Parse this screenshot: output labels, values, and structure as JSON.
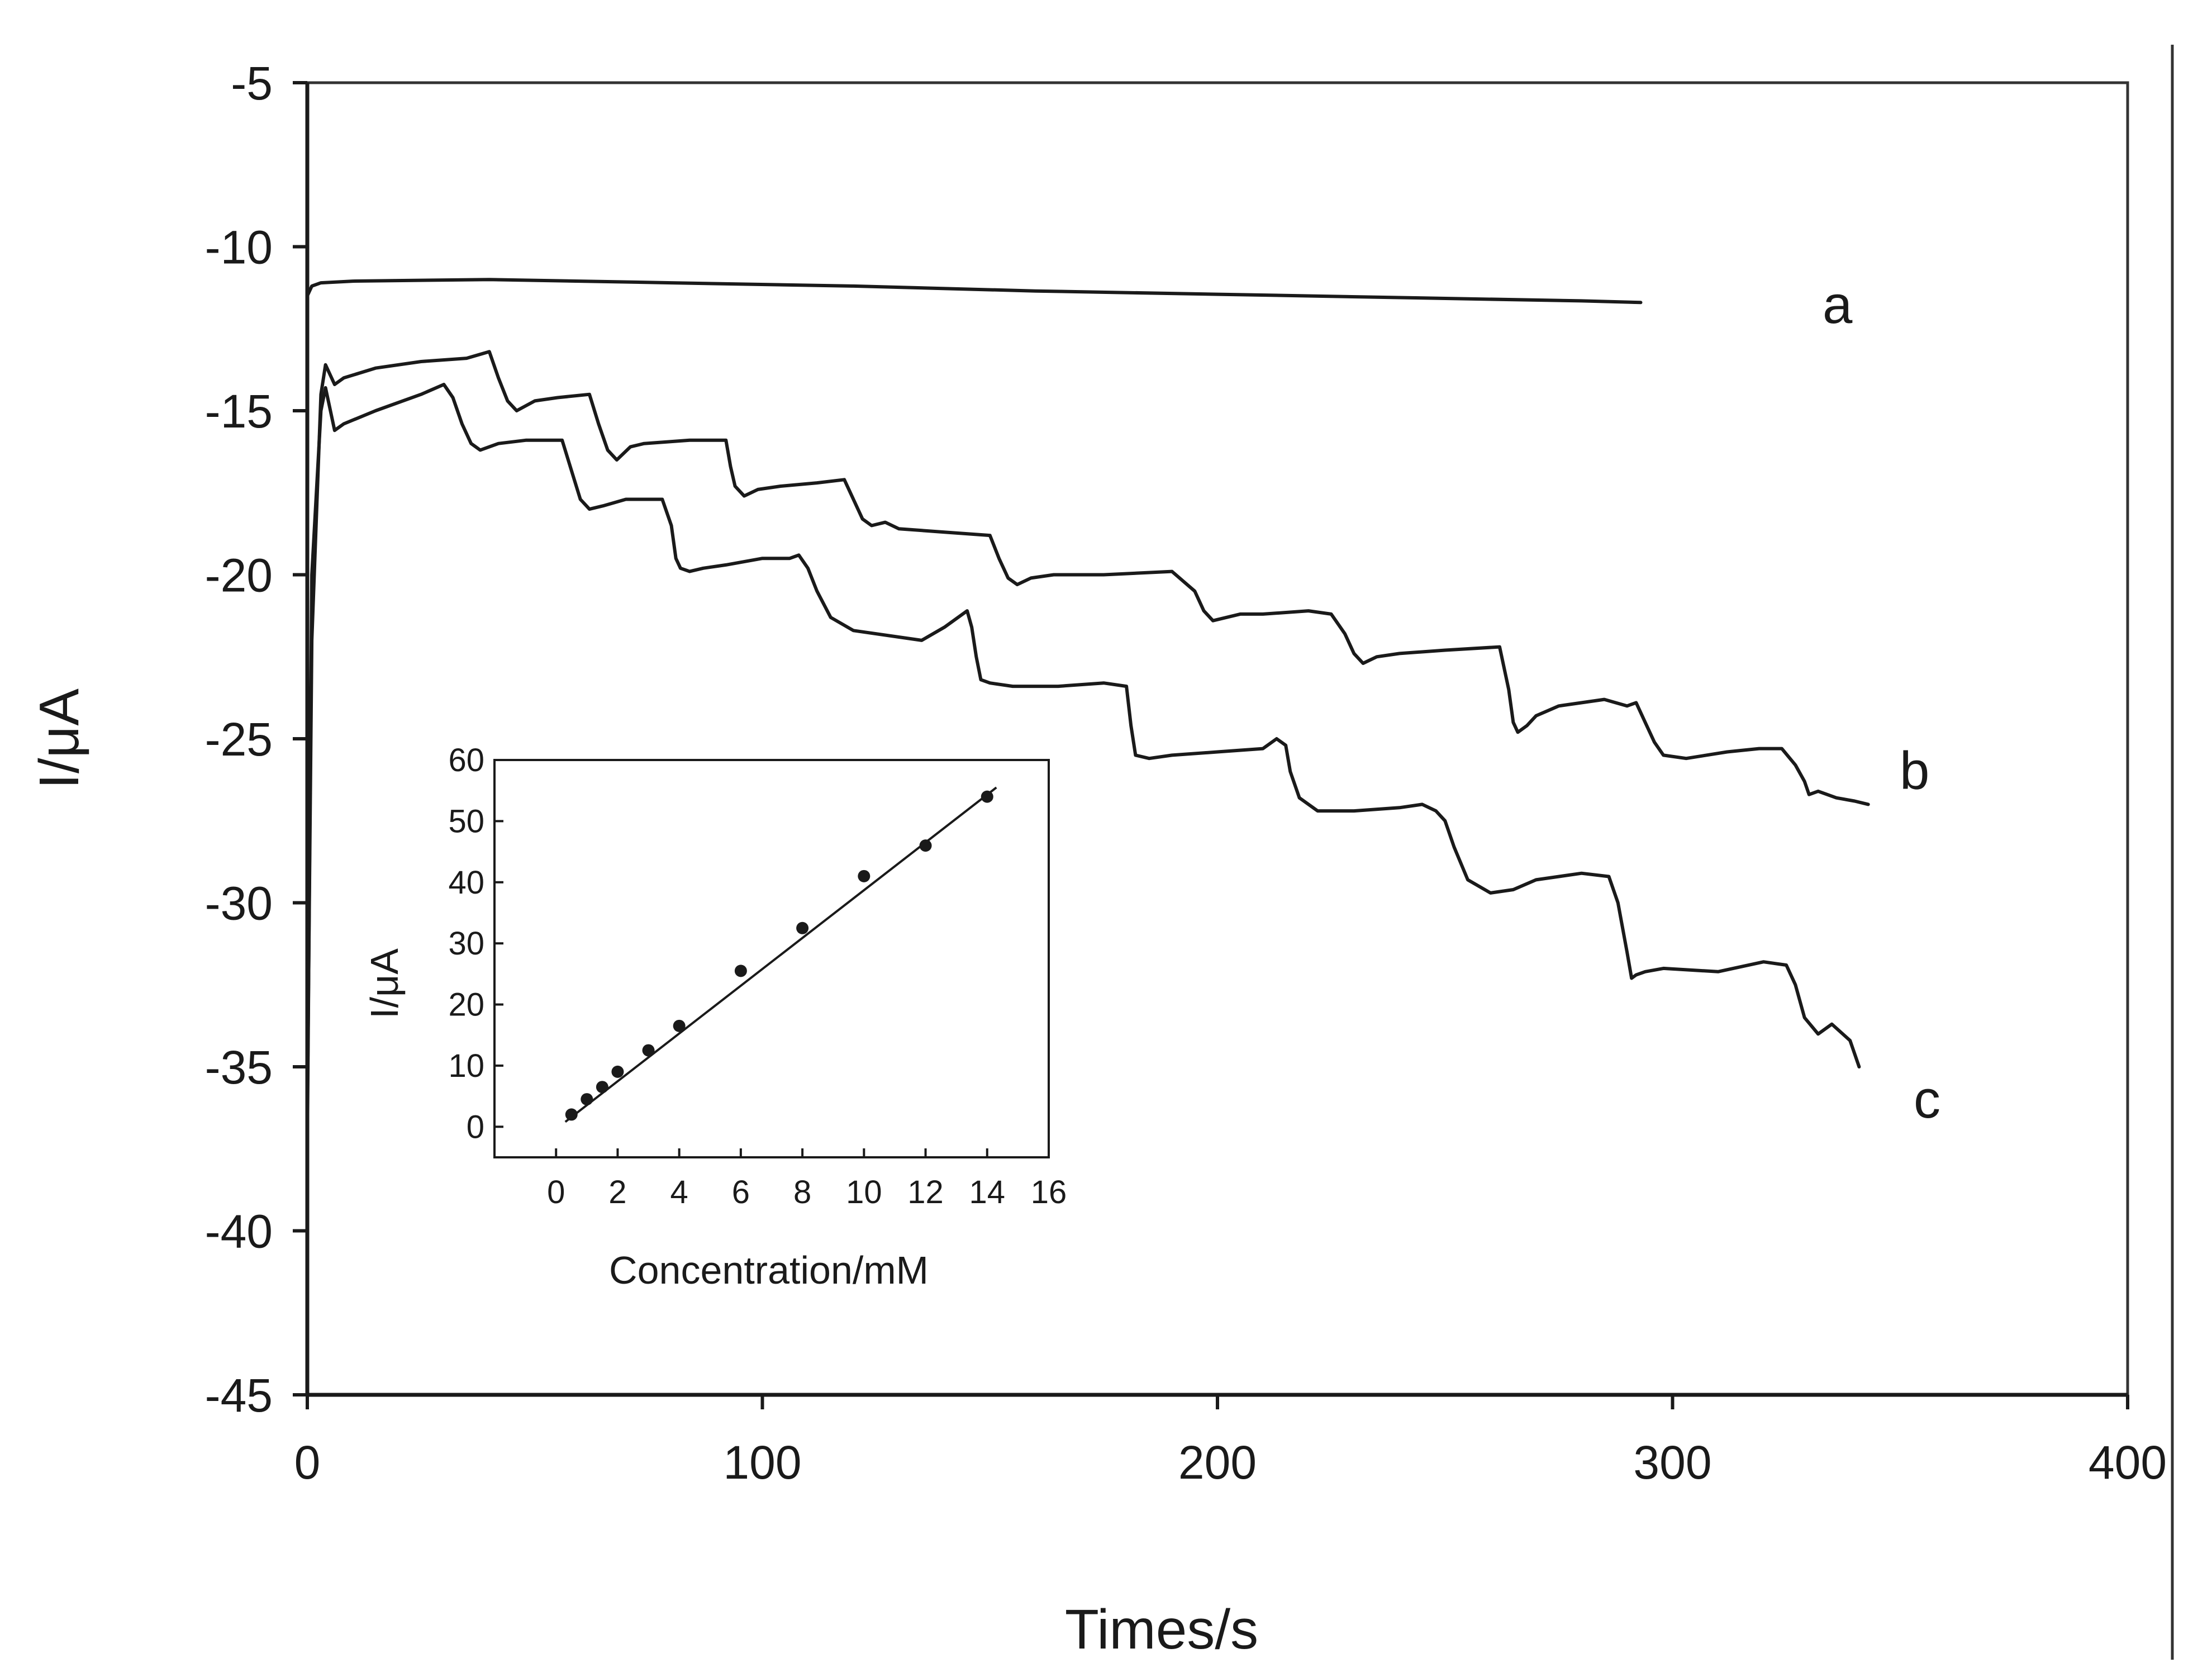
{
  "chart_data": [
    {
      "type": "line",
      "xlabel": "Times/s",
      "ylabel": "I/μA",
      "xlim": [
        0,
        400
      ],
      "ylim": [
        -45,
        -5
      ],
      "xticks": [
        "0",
        "100",
        "200",
        "300",
        "400"
      ],
      "yticks": [
        "-5",
        "-10",
        "-15",
        "-20",
        "-25",
        "-30",
        "-35",
        "-40",
        "-45"
      ],
      "series": [
        {
          "name": "a",
          "x": [
            0,
            1,
            3,
            10,
            40,
            80,
            120,
            160,
            200,
            240,
            280,
            293
          ],
          "y": [
            -11.5,
            -11.2,
            -11.1,
            -11.05,
            -11.0,
            -11.1,
            -11.2,
            -11.35,
            -11.45,
            -11.55,
            -11.65,
            -11.7
          ]
        },
        {
          "name": "b",
          "x": [
            0,
            1,
            3,
            4,
            6,
            8,
            15,
            25,
            35,
            40,
            42,
            44,
            46,
            50,
            55,
            62,
            64,
            66,
            68,
            71,
            74,
            84,
            92,
            93,
            94,
            96,
            99,
            104,
            112,
            118,
            120,
            122,
            124,
            127,
            130,
            140,
            150,
            152,
            154,
            156,
            159,
            164,
            175,
            190,
            195,
            197,
            199,
            202,
            205,
            210,
            220,
            225,
            228,
            230,
            232,
            235,
            240,
            250,
            262,
            264,
            265,
            266,
            268,
            270,
            275,
            285,
            290,
            292,
            294,
            296,
            298,
            303,
            312,
            319,
            324,
            327,
            329,
            330,
            332,
            336,
            340,
            343
          ],
          "y": [
            -36.5,
            -22,
            -14.5,
            -13.6,
            -14.2,
            -14.0,
            -13.7,
            -13.5,
            -13.4,
            -13.2,
            -14.0,
            -14.7,
            -15.0,
            -14.7,
            -14.6,
            -14.5,
            -15.4,
            -16.2,
            -16.5,
            -16.1,
            -16.0,
            -15.9,
            -15.9,
            -16.7,
            -17.3,
            -17.6,
            -17.4,
            -17.3,
            -17.2,
            -17.1,
            -17.7,
            -18.3,
            -18.5,
            -18.4,
            -18.6,
            -18.7,
            -18.8,
            -19.5,
            -20.1,
            -20.3,
            -20.1,
            -20.0,
            -20.0,
            -19.9,
            -20.5,
            -21.1,
            -21.4,
            -21.3,
            -21.2,
            -21.2,
            -21.1,
            -21.2,
            -21.8,
            -22.4,
            -22.7,
            -22.5,
            -22.4,
            -22.3,
            -22.2,
            -23.5,
            -24.5,
            -24.8,
            -24.6,
            -24.3,
            -24.0,
            -23.8,
            -24.0,
            -23.9,
            -24.5,
            -25.1,
            -25.5,
            -25.6,
            -25.4,
            -25.3,
            -25.3,
            -25.8,
            -26.3,
            -26.7,
            -26.6,
            -26.8,
            -26.9,
            -27.0
          ]
        },
        {
          "name": "c",
          "x": [
            0,
            1,
            3,
            4,
            6,
            8,
            15,
            25,
            30,
            32,
            34,
            36,
            38,
            42,
            48,
            56,
            58,
            60,
            62,
            65,
            70,
            78,
            80,
            81,
            82,
            84,
            87,
            92,
            100,
            106,
            108,
            110,
            112,
            115,
            120,
            135,
            140,
            145,
            146,
            147,
            148,
            150,
            155,
            165,
            175,
            180,
            181,
            182,
            185,
            190,
            200,
            210,
            213,
            215,
            216,
            218,
            222,
            230,
            240,
            245,
            248,
            250,
            252,
            255,
            260,
            265,
            270,
            280,
            286,
            288,
            290,
            291,
            292,
            294,
            298,
            310,
            320,
            325,
            327,
            329,
            332,
            335,
            339,
            341
          ],
          "y": [
            -37.5,
            -20,
            -15.0,
            -14.3,
            -15.6,
            -15.4,
            -15.0,
            -14.5,
            -14.2,
            -14.6,
            -15.4,
            -16.0,
            -16.2,
            -16.0,
            -15.9,
            -15.9,
            -16.8,
            -17.7,
            -18.0,
            -17.9,
            -17.7,
            -17.7,
            -18.5,
            -19.5,
            -19.8,
            -19.9,
            -19.8,
            -19.7,
            -19.5,
            -19.5,
            -19.4,
            -19.8,
            -20.5,
            -21.3,
            -21.7,
            -22.0,
            -21.6,
            -21.1,
            -21.6,
            -22.5,
            -23.2,
            -23.3,
            -23.4,
            -23.4,
            -23.3,
            -23.4,
            -24.6,
            -25.5,
            -25.6,
            -25.5,
            -25.4,
            -25.3,
            -25.0,
            -25.2,
            -26.0,
            -26.8,
            -27.2,
            -27.2,
            -27.1,
            -27.0,
            -27.2,
            -27.5,
            -28.3,
            -29.3,
            -29.7,
            -29.6,
            -29.3,
            -29.1,
            -29.2,
            -30.0,
            -31.5,
            -32.3,
            -32.2,
            -32.1,
            -32.0,
            -32.1,
            -31.8,
            -31.9,
            -32.5,
            -33.5,
            -34.0,
            -33.7,
            -34.2,
            -35.0
          ]
        }
      ]
    },
    {
      "type": "scatter",
      "xlabel": "Concentration/mM",
      "ylabel": "I/μA",
      "xlim": [
        -2,
        16
      ],
      "ylim": [
        -5,
        60
      ],
      "xticks": [
        "0",
        "2",
        "4",
        "6",
        "8",
        "10",
        "12",
        "14",
        "16"
      ],
      "yticks": [
        "0",
        "10",
        "20",
        "30",
        "40",
        "50",
        "60"
      ],
      "points": {
        "x": [
          0.5,
          1,
          1.5,
          2,
          3,
          4,
          6,
          8,
          10,
          12,
          14
        ],
        "y": [
          2,
          4.5,
          6.5,
          9,
          12.5,
          16.5,
          25.5,
          32.5,
          41,
          46,
          54
        ]
      },
      "fit": {
        "x": [
          0.3,
          14.3
        ],
        "y": [
          0.8,
          55.5
        ]
      }
    }
  ],
  "curve_labels": [
    "a",
    "b",
    "c"
  ]
}
